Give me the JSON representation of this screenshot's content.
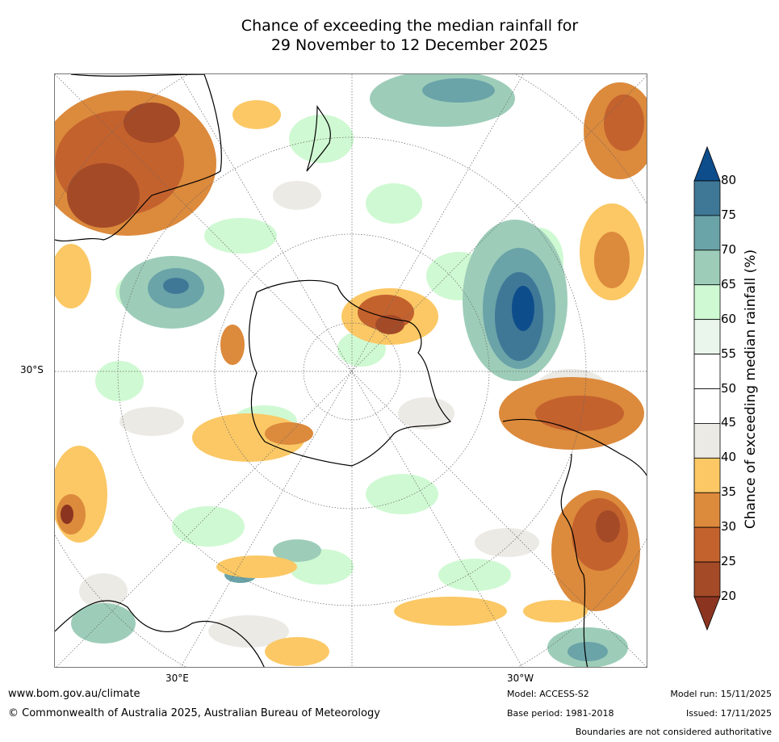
{
  "title": {
    "line1": "Chance of exceeding the median rainfall for",
    "line2": "29 November to 12 December 2025"
  },
  "axes": {
    "lat_label": "30°S",
    "lon_labels": [
      "30°E",
      "30°W"
    ]
  },
  "colorbar": {
    "label": "Chance of exceeding median rainfall (%)",
    "ticks": [
      "80",
      "75",
      "70",
      "65",
      "60",
      "55",
      "50",
      "45",
      "40",
      "35",
      "30",
      "25",
      "20"
    ],
    "colors": [
      "#0e4d8c",
      "#3f7897",
      "#6aa3a8",
      "#9dcdb9",
      "#cff9d2",
      "#eaf5ec",
      "#ffffff",
      "#ffffff",
      "#eceae5",
      "#fbc865",
      "#dc8a3c",
      "#c4622e",
      "#a44a27",
      "#8b3520"
    ]
  },
  "footer": {
    "website": "www.bom.gov.au/climate",
    "copyright": "© Commonwealth of Australia 2025, Australian Bureau of Meteorology",
    "model": "Model: ACCESS-S2",
    "base_period": "Base period: 1981-2018",
    "model_run": "Model run: 15/11/2025",
    "issued": "Issued: 17/11/2025",
    "disclaimer": "Boundaries are not considered authoritative"
  }
}
